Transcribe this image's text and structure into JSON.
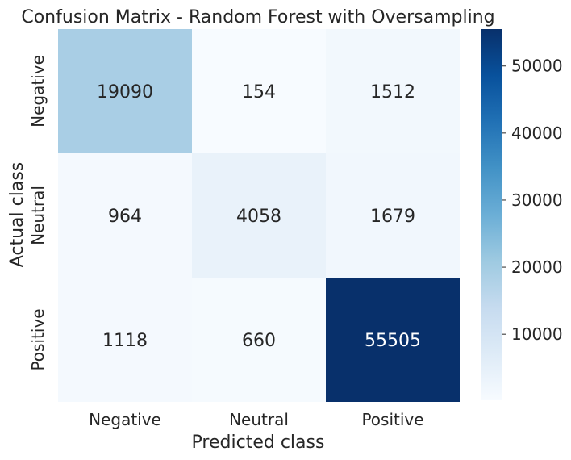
{
  "chart_data": {
    "type": "heatmap",
    "title": "Confusion Matrix - Random Forest with Oversampling",
    "xlabel": "Predicted class",
    "ylabel": "Actual class",
    "x_categories": [
      "Negative",
      "Neutral",
      "Positive"
    ],
    "y_categories": [
      "Negative",
      "Neutral",
      "Positive"
    ],
    "values": [
      [
        19090,
        154,
        1512
      ],
      [
        964,
        4058,
        1679
      ],
      [
        1118,
        660,
        55505
      ]
    ],
    "colormap": "Blues",
    "color_range": [
      154,
      55505
    ],
    "colorbar_ticks": [
      10000,
      20000,
      30000,
      40000,
      50000
    ],
    "colorbar_tick_labels": [
      "10000",
      "20000",
      "30000",
      "40000",
      "50000"
    ],
    "annotation_colors": {
      "light": "#ffffff",
      "dark": "#262626"
    }
  }
}
